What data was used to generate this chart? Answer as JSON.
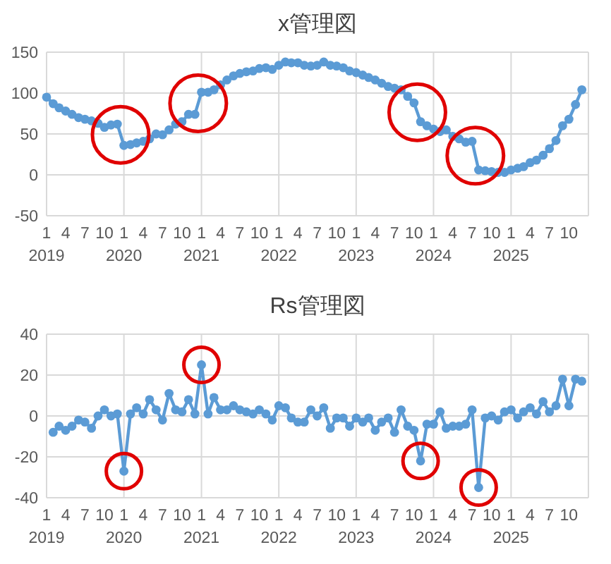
{
  "chart_data": [
    {
      "type": "line",
      "title": "x管理図",
      "color": "#5b9bd5",
      "marker": "circle",
      "grid": true,
      "x": [
        "2019-01",
        "2019-02",
        "2019-03",
        "2019-04",
        "2019-05",
        "2019-06",
        "2019-07",
        "2019-08",
        "2019-09",
        "2019-10",
        "2019-11",
        "2019-12",
        "2020-01",
        "2020-02",
        "2020-03",
        "2020-04",
        "2020-05",
        "2020-06",
        "2020-07",
        "2020-08",
        "2020-09",
        "2020-10",
        "2020-11",
        "2020-12",
        "2021-01",
        "2021-02",
        "2021-03",
        "2021-04",
        "2021-05",
        "2021-06",
        "2021-07",
        "2021-08",
        "2021-09",
        "2021-10",
        "2021-11",
        "2021-12",
        "2022-01",
        "2022-02",
        "2022-03",
        "2022-04",
        "2022-05",
        "2022-06",
        "2022-07",
        "2022-08",
        "2022-09",
        "2022-10",
        "2022-11",
        "2022-12",
        "2023-01",
        "2023-02",
        "2023-03",
        "2023-04",
        "2023-05",
        "2023-06",
        "2023-07",
        "2023-08",
        "2023-09",
        "2023-10",
        "2023-11",
        "2023-12",
        "2024-01",
        "2024-02",
        "2024-03",
        "2024-04",
        "2024-05",
        "2024-06",
        "2024-07",
        "2024-08",
        "2024-09",
        "2024-10",
        "2024-11",
        "2024-12",
        "2025-01",
        "2025-02",
        "2025-03",
        "2025-04",
        "2025-05",
        "2025-06",
        "2025-07",
        "2025-08",
        "2025-09",
        "2025-10",
        "2025-11",
        "2025-12"
      ],
      "values": [
        95,
        87,
        82,
        78,
        74,
        70,
        68,
        66,
        63,
        58,
        61,
        62,
        36,
        37,
        39,
        41,
        44,
        50,
        49,
        55,
        62,
        65,
        74,
        74,
        101,
        101,
        104,
        110,
        116,
        121,
        124,
        126,
        127,
        130,
        131,
        129,
        134,
        138,
        137,
        137,
        134,
        133,
        134,
        138,
        134,
        133,
        131,
        127,
        125,
        122,
        119,
        116,
        112,
        108,
        106,
        104,
        96,
        88,
        65,
        60,
        56,
        53,
        55,
        47,
        44,
        40,
        41,
        6,
        5,
        4,
        3,
        3,
        6,
        8,
        10,
        15,
        18,
        24,
        32,
        42,
        60,
        68,
        86,
        104
      ],
      "xlim": [
        "2019-01",
        "2026-01"
      ],
      "xticks": [
        {
          "value": "2019-01",
          "label": "1\n2019"
        },
        {
          "value": "2019-04",
          "label": "4"
        },
        {
          "value": "2019-07",
          "label": "7"
        },
        {
          "value": "2019-10",
          "label": "10"
        },
        {
          "value": "2020-01",
          "label": "1\n2020"
        },
        {
          "value": "2020-04",
          "label": "4"
        },
        {
          "value": "2020-07",
          "label": "7"
        },
        {
          "value": "2020-10",
          "label": "10"
        },
        {
          "value": "2021-01",
          "label": "1\n2021"
        },
        {
          "value": "2021-04",
          "label": "4"
        },
        {
          "value": "2021-07",
          "label": "7"
        },
        {
          "value": "2021-10",
          "label": "10"
        },
        {
          "value": "2022-01",
          "label": "1\n2022"
        },
        {
          "value": "2022-04",
          "label": "4"
        },
        {
          "value": "2022-07",
          "label": "7"
        },
        {
          "value": "2022-10",
          "label": "10"
        },
        {
          "value": "2023-01",
          "label": "1\n2023"
        },
        {
          "value": "2023-04",
          "label": "4"
        },
        {
          "value": "2023-07",
          "label": "7"
        },
        {
          "value": "2023-10",
          "label": "10"
        },
        {
          "value": "2024-01",
          "label": "1\n2024"
        },
        {
          "value": "2024-04",
          "label": "4"
        },
        {
          "value": "2024-07",
          "label": "7"
        },
        {
          "value": "2024-10",
          "label": "10"
        },
        {
          "value": "2025-01",
          "label": "1\n2025"
        },
        {
          "value": "2025-04",
          "label": "4"
        },
        {
          "value": "2025-07",
          "label": "7"
        },
        {
          "value": "2025-10",
          "label": "10"
        }
      ],
      "ylim": [
        -50,
        150
      ],
      "yticks": [
        -50,
        0,
        50,
        100,
        150
      ]
    },
    {
      "type": "line",
      "title": "Rs管理図",
      "color": "#5b9bd5",
      "marker": "circle",
      "grid": true,
      "x": [
        "2019-02",
        "2019-03",
        "2019-04",
        "2019-05",
        "2019-06",
        "2019-07",
        "2019-08",
        "2019-09",
        "2019-10",
        "2019-11",
        "2019-12",
        "2020-01",
        "2020-02",
        "2020-03",
        "2020-04",
        "2020-05",
        "2020-06",
        "2020-07",
        "2020-08",
        "2020-09",
        "2020-10",
        "2020-11",
        "2020-12",
        "2021-01",
        "2021-02",
        "2021-03",
        "2021-04",
        "2021-05",
        "2021-06",
        "2021-07",
        "2021-08",
        "2021-09",
        "2021-10",
        "2021-11",
        "2021-12",
        "2022-01",
        "2022-02",
        "2022-03",
        "2022-04",
        "2022-05",
        "2022-06",
        "2022-07",
        "2022-08",
        "2022-09",
        "2022-10",
        "2022-11",
        "2022-12",
        "2023-01",
        "2023-02",
        "2023-03",
        "2023-04",
        "2023-05",
        "2023-06",
        "2023-07",
        "2023-08",
        "2023-09",
        "2023-10",
        "2023-11",
        "2023-12",
        "2024-01",
        "2024-02",
        "2024-03",
        "2024-04",
        "2024-05",
        "2024-06",
        "2024-07",
        "2024-08",
        "2024-09",
        "2024-10",
        "2024-11",
        "2024-12",
        "2025-01",
        "2025-02",
        "2025-03",
        "2025-04",
        "2025-05",
        "2025-06",
        "2025-07",
        "2025-08",
        "2025-09",
        "2025-10",
        "2025-11",
        "2025-12"
      ],
      "values": [
        -8,
        -5,
        -7,
        -5,
        -2,
        -3,
        -6,
        0,
        3,
        0,
        1,
        -27,
        1,
        4,
        1,
        8,
        3,
        -2,
        11,
        3,
        2,
        8,
        1,
        25,
        1,
        9,
        3,
        3,
        5,
        3,
        2,
        1,
        3,
        1,
        -2,
        5,
        4,
        -1,
        -3,
        -3,
        3,
        0,
        4,
        -6,
        -1,
        -1,
        -5,
        -1,
        -3,
        -1,
        -7,
        -3,
        -1,
        -8,
        3,
        -5,
        -7,
        -22,
        -4,
        -4,
        2,
        -6,
        -5,
        -5,
        -4,
        3,
        -35,
        -1,
        0,
        -2,
        2,
        3,
        -1,
        2,
        4,
        1,
        7,
        2,
        5,
        18,
        5,
        18,
        17
      ],
      "xlim": [
        "2019-01",
        "2026-01"
      ],
      "xticks": [
        {
          "value": "2019-01",
          "label": "1\n2019"
        },
        {
          "value": "2019-04",
          "label": "4"
        },
        {
          "value": "2019-07",
          "label": "7"
        },
        {
          "value": "2019-10",
          "label": "10"
        },
        {
          "value": "2020-01",
          "label": "1\n2020"
        },
        {
          "value": "2020-04",
          "label": "4"
        },
        {
          "value": "2020-07",
          "label": "7"
        },
        {
          "value": "2020-10",
          "label": "10"
        },
        {
          "value": "2021-01",
          "label": "1\n2021"
        },
        {
          "value": "2021-04",
          "label": "4"
        },
        {
          "value": "2021-07",
          "label": "7"
        },
        {
          "value": "2021-10",
          "label": "10"
        },
        {
          "value": "2022-01",
          "label": "1\n2022"
        },
        {
          "value": "2022-04",
          "label": "4"
        },
        {
          "value": "2022-07",
          "label": "7"
        },
        {
          "value": "2022-10",
          "label": "10"
        },
        {
          "value": "2023-01",
          "label": "1\n2023"
        },
        {
          "value": "2023-04",
          "label": "4"
        },
        {
          "value": "2023-07",
          "label": "7"
        },
        {
          "value": "2023-10",
          "label": "10"
        },
        {
          "value": "2024-01",
          "label": "1\n2024"
        },
        {
          "value": "2024-04",
          "label": "4"
        },
        {
          "value": "2024-07",
          "label": "7"
        },
        {
          "value": "2024-10",
          "label": "10"
        },
        {
          "value": "2025-01",
          "label": "1\n2025"
        },
        {
          "value": "2025-04",
          "label": "4"
        },
        {
          "value": "2025-07",
          "label": "7"
        },
        {
          "value": "2025-10",
          "label": "10"
        }
      ],
      "ylim": [
        -40,
        40
      ],
      "yticks": [
        -40,
        -20,
        0,
        20,
        40
      ]
    }
  ]
}
